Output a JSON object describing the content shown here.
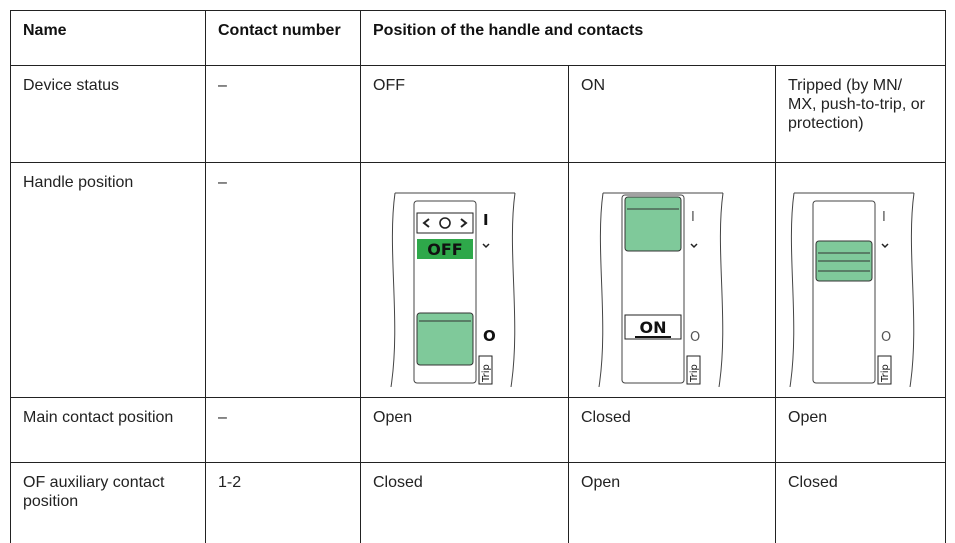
{
  "table": {
    "header": [
      "Name",
      "Contact number",
      "Position of the handle and contacts"
    ],
    "rows": [
      [
        "Device status",
        "–",
        "OFF",
        "ON",
        "Tripped (by MN/ MX, push-to-trip, or protection)"
      ],
      [
        "Handle position",
        "–"
      ],
      [
        "Main contact position",
        "–",
        "Open",
        "Closed",
        "Open"
      ],
      [
        "OF auxiliary contact position",
        "1-2",
        "Closed",
        "Open",
        "Closed"
      ]
    ],
    "handle_images": [
      {
        "state_label": "OFF",
        "top_mark": "I",
        "bottom_mark": "O",
        "trip": "Trip"
      },
      {
        "state_label": "ON",
        "top_mark": "I",
        "bottom_mark": "O",
        "trip": "Trip"
      },
      {
        "top_mark": "I",
        "bottom_mark": "O",
        "trip": "Trip"
      }
    ]
  }
}
